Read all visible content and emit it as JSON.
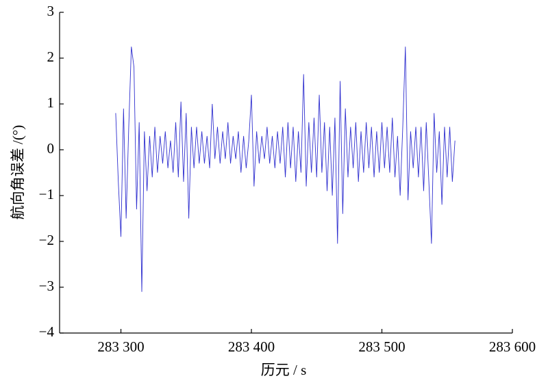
{
  "chart_data": {
    "type": "line",
    "x_label": "历元 / s",
    "y_label": "航向角误差 /(°)",
    "x": [
      283296,
      283298,
      283300,
      283302,
      283304,
      283306,
      283308,
      283310,
      283312,
      283314,
      283316,
      283318,
      283320,
      283322,
      283324,
      283326,
      283328,
      283330,
      283332,
      283334,
      283336,
      283338,
      283340,
      283342,
      283344,
      283346,
      283348,
      283350,
      283352,
      283354,
      283356,
      283358,
      283360,
      283362,
      283364,
      283366,
      283368,
      283370,
      283372,
      283374,
      283376,
      283378,
      283380,
      283382,
      283384,
      283386,
      283388,
      283390,
      283392,
      283394,
      283396,
      283398,
      283400,
      283402,
      283404,
      283406,
      283408,
      283410,
      283412,
      283414,
      283416,
      283418,
      283420,
      283422,
      283424,
      283426,
      283428,
      283430,
      283432,
      283434,
      283436,
      283438,
      283440,
      283442,
      283444,
      283446,
      283448,
      283450,
      283452,
      283454,
      283456,
      283458,
      283460,
      283462,
      283464,
      283466,
      283468,
      283470,
      283472,
      283474,
      283476,
      283478,
      283480,
      283482,
      283484,
      283486,
      283488,
      283490,
      283492,
      283494,
      283496,
      283498,
      283500,
      283502,
      283504,
      283506,
      283508,
      283510,
      283512,
      283514,
      283516,
      283518,
      283520,
      283522,
      283524,
      283526,
      283528,
      283530,
      283532,
      283534,
      283536,
      283538,
      283540,
      283542,
      283544,
      283546,
      283548,
      283550,
      283552,
      283554,
      283556
    ],
    "series": [
      {
        "color": "#2f2fcf",
        "values": [
          0.8,
          -0.7,
          -1.9,
          0.9,
          -1.5,
          0.5,
          2.25,
          1.8,
          -1.3,
          0.6,
          -3.1,
          0.4,
          -0.9,
          0.3,
          -0.6,
          0.5,
          -0.5,
          0.3,
          -0.3,
          0.4,
          -0.4,
          0.2,
          -0.5,
          0.6,
          -0.6,
          1.05,
          -0.7,
          0.8,
          -1.5,
          0.5,
          -0.4,
          0.5,
          -0.3,
          0.4,
          -0.3,
          0.3,
          -0.4,
          1.0,
          -0.2,
          0.5,
          -0.3,
          0.4,
          -0.2,
          0.6,
          -0.3,
          0.3,
          -0.2,
          0.4,
          -0.5,
          0.3,
          -0.4,
          0.2,
          1.2,
          -0.8,
          0.4,
          -0.3,
          0.3,
          -0.2,
          0.5,
          -0.3,
          0.3,
          -0.4,
          0.4,
          -0.3,
          0.5,
          -0.6,
          0.6,
          -0.4,
          0.5,
          -0.7,
          0.4,
          -0.5,
          1.65,
          -0.8,
          0.6,
          -0.5,
          0.7,
          -0.6,
          1.2,
          -0.5,
          0.6,
          -0.9,
          0.5,
          -1.0,
          0.7,
          -2.05,
          1.5,
          -1.4,
          0.9,
          -0.6,
          0.5,
          -0.4,
          0.6,
          -0.7,
          0.4,
          -0.5,
          0.6,
          -0.4,
          0.5,
          -0.6,
          0.4,
          -0.5,
          0.6,
          -0.4,
          0.5,
          -0.5,
          0.7,
          -0.6,
          0.3,
          -1.0,
          0.5,
          2.25,
          -1.1,
          0.4,
          -0.4,
          0.5,
          -0.6,
          0.5,
          -0.9,
          0.6,
          -0.7,
          -2.05,
          0.8,
          -0.5,
          0.4,
          -1.2,
          0.5,
          -0.6,
          0.5,
          -0.7,
          0.2
        ]
      }
    ],
    "xlim": [
      283253,
      283600
    ],
    "xticks": [
      {
        "value": 283300,
        "label": "283 300"
      },
      {
        "value": 283400,
        "label": "283 400"
      },
      {
        "value": 283500,
        "label": "283 500"
      },
      {
        "value": 283600,
        "label": "283 600"
      }
    ],
    "ylim": [
      -4,
      3
    ],
    "yticks": [
      {
        "value": -4,
        "label": "−4"
      },
      {
        "value": -3,
        "label": "−3"
      },
      {
        "value": -2,
        "label": "−2"
      },
      {
        "value": -1,
        "label": "−1"
      },
      0,
      1,
      2,
      3
    ],
    "grid": false
  }
}
